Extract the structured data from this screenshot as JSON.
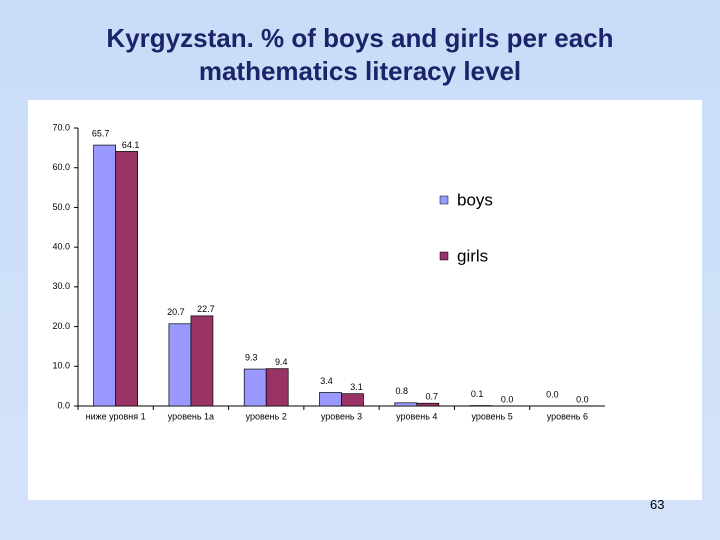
{
  "chart_data": {
    "type": "bar",
    "title": "Kyrgyzstan. % of boys and girls per each mathematics literacy level",
    "categories": [
      "ниже уровня 1",
      "уровень 1а",
      "уровень 2",
      "уровень 3",
      "уровень 4",
      "уровень 5",
      "уровень 6"
    ],
    "series": [
      {
        "name": "boys",
        "color": "#9999ff",
        "values": [
          65.7,
          20.7,
          9.3,
          3.4,
          0.8,
          0.1,
          0.0
        ],
        "value_labels": [
          "65.7",
          "20.7",
          "9.3",
          "3.4",
          "0.8",
          "0.1",
          "0.0"
        ]
      },
      {
        "name": "girls",
        "color": "#993366",
        "values": [
          64.1,
          22.7,
          9.4,
          3.1,
          0.7,
          0.0,
          0.0
        ],
        "value_labels": [
          "64.1",
          "22.7",
          "9.4",
          "3.1",
          "0.7",
          "0.0",
          "0.0"
        ]
      }
    ],
    "ylim": [
      0,
      70
    ],
    "yticks": [
      {
        "value": 0,
        "label": "0.0"
      },
      {
        "value": 10,
        "label": "10.0"
      },
      {
        "value": 20,
        "label": "20.0"
      },
      {
        "value": 30,
        "label": "30.0"
      },
      {
        "value": 40,
        "label": "40.0"
      },
      {
        "value": 50,
        "label": "50.0"
      },
      {
        "value": 60,
        "label": "60.0"
      },
      {
        "value": 70,
        "label": "70.0"
      }
    ],
    "grid": false,
    "legend": "right"
  },
  "page_number": "63"
}
